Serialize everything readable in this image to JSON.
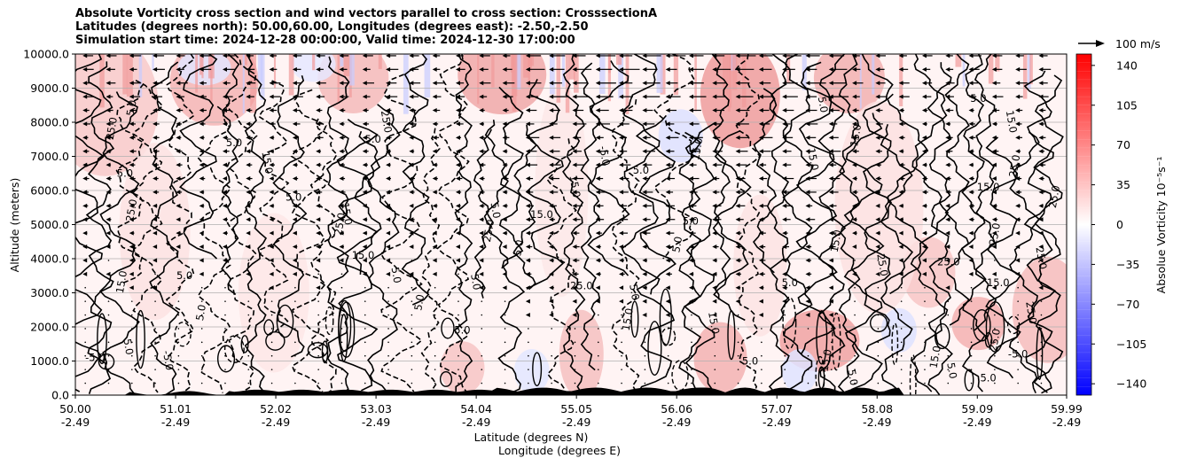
{
  "chart_data": {
    "type": "heatmap",
    "title_lines": [
      "Absolute Vorticity cross section and wind vectors parallel to cross section: CrosssectionA",
      "Latitudes (degrees north): 50.00,60.00, Longitudes (degrees east): -2.50,-2.50",
      "Simulation start time: 2024-12-28 00:00:00, Valid time: 2024-12-30 17:00:00"
    ],
    "ylabel": "Altitude (meters)",
    "xlabel_lines": [
      "Latitude (degrees N)",
      "Longitude (degrees E)"
    ],
    "ylim": [
      0,
      10000
    ],
    "y_ticks": [
      "0.0",
      "1000.0",
      "2000.0",
      "3000.0",
      "4000.0",
      "5000.0",
      "6000.0",
      "7000.0",
      "8000.0",
      "9000.0",
      "10000.0"
    ],
    "y_tick_values": [
      0,
      1000,
      2000,
      3000,
      4000,
      5000,
      6000,
      7000,
      8000,
      9000,
      10000
    ],
    "x_ticks_lat": [
      "50.00",
      "51.01",
      "52.02",
      "53.03",
      "54.04",
      "55.05",
      "56.06",
      "57.07",
      "58.08",
      "59.09",
      "59.99"
    ],
    "x_ticks_lon": [
      "-2.49",
      "-2.49",
      "-2.49",
      "-2.49",
      "-2.49",
      "-2.49",
      "-2.49",
      "-2.49",
      "-2.49",
      "-2.49",
      "-2.49"
    ],
    "x_tick_values": [
      50.0,
      51.01,
      52.02,
      53.03,
      54.04,
      55.05,
      56.06,
      57.07,
      58.08,
      59.09,
      59.99
    ],
    "xlim": [
      50.0,
      59.99
    ],
    "grid": "horizontal",
    "colorbar": {
      "label": "Absolue Vorticity 10⁻⁵s⁻¹",
      "ticks": [
        "140",
        "105",
        "70",
        "35",
        "0",
        "−35",
        "−70",
        "−105",
        "−140"
      ],
      "tick_values": [
        140,
        105,
        70,
        35,
        0,
        -35,
        -70,
        -105,
        -140
      ],
      "range": [
        -150,
        150
      ],
      "colormap": "bwr"
    },
    "quiver_key": {
      "label": "100 m/s"
    },
    "contour_labels": [
      {
        "lat": 51.6,
        "alt": 7300,
        "text": "5.0"
      },
      {
        "lat": 51.9,
        "alt": 6800,
        "text": "15.0"
      },
      {
        "lat": 50.6,
        "alt": 5400,
        "text": "25.0"
      },
      {
        "lat": 52.2,
        "alt": 5700,
        "text": "5.0"
      },
      {
        "lat": 52.7,
        "alt": 5000,
        "text": "25.0"
      },
      {
        "lat": 52.7,
        "alt": 5300,
        "text": "15.0"
      },
      {
        "lat": 52.9,
        "alt": 4000,
        "text": "15.0"
      },
      {
        "lat": 53.2,
        "alt": 3500,
        "text": "5.0"
      },
      {
        "lat": 50.5,
        "alt": 3300,
        "text": "15.0"
      },
      {
        "lat": 51.1,
        "alt": 3400,
        "text": "5.0"
      },
      {
        "lat": 51.3,
        "alt": 2400,
        "text": "5.0"
      },
      {
        "lat": 50.5,
        "alt": 1400,
        "text": "5.0"
      },
      {
        "lat": 50.2,
        "alt": 1000,
        "text": "-5.0"
      },
      {
        "lat": 50.9,
        "alt": 1000,
        "text": "-5.0"
      },
      {
        "lat": 50.6,
        "alt": 8400,
        "text": "5.0"
      },
      {
        "lat": 50.5,
        "alt": 6400,
        "text": "5.0"
      },
      {
        "lat": 50.4,
        "alt": 7800,
        "text": "25.0"
      },
      {
        "lat": 53.1,
        "alt": 8000,
        "text": "25.0"
      },
      {
        "lat": 53.0,
        "alt": 7400,
        "text": "5.0"
      },
      {
        "lat": 54.2,
        "alt": 5400,
        "text": "5.0"
      },
      {
        "lat": 54.2,
        "alt": 4800,
        "text": "25.0"
      },
      {
        "lat": 54.7,
        "alt": 5200,
        "text": "15.0"
      },
      {
        "lat": 54.5,
        "alt": 4300,
        "text": "5.0"
      },
      {
        "lat": 55.0,
        "alt": 6100,
        "text": "15.0"
      },
      {
        "lat": 55.7,
        "alt": 6500,
        "text": "5.0"
      },
      {
        "lat": 55.3,
        "alt": 7000,
        "text": "-5.0"
      },
      {
        "lat": 56.3,
        "alt": 7200,
        "text": "15.0"
      },
      {
        "lat": 56.2,
        "alt": 5000,
        "text": "5.0"
      },
      {
        "lat": 56.1,
        "alt": 4400,
        "text": "5.0"
      },
      {
        "lat": 55.6,
        "alt": 3000,
        "text": "5.0"
      },
      {
        "lat": 55.1,
        "alt": 3100,
        "text": "25.0"
      },
      {
        "lat": 54.0,
        "alt": 3300,
        "text": "5.0"
      },
      {
        "lat": 53.5,
        "alt": 2700,
        "text": "5.0"
      },
      {
        "lat": 53.9,
        "alt": 1800,
        "text": "5.0"
      },
      {
        "lat": 55.6,
        "alt": 2200,
        "text": "15.0"
      },
      {
        "lat": 56.4,
        "alt": 2100,
        "text": "15.0"
      },
      {
        "lat": 57.2,
        "alt": 3200,
        "text": "5.0"
      },
      {
        "lat": 58.1,
        "alt": 3800,
        "text": "25.0"
      },
      {
        "lat": 57.7,
        "alt": 4500,
        "text": "15.0"
      },
      {
        "lat": 58.8,
        "alt": 3800,
        "text": "25.0"
      },
      {
        "lat": 59.3,
        "alt": 4700,
        "text": "25.0"
      },
      {
        "lat": 59.7,
        "alt": 4000,
        "text": "25.0"
      },
      {
        "lat": 59.3,
        "alt": 3200,
        "text": "15.0"
      },
      {
        "lat": 59.6,
        "alt": 2400,
        "text": "25.0"
      },
      {
        "lat": 59.3,
        "alt": 1600,
        "text": "25.0"
      },
      {
        "lat": 59.5,
        "alt": 1100,
        "text": "-5.0"
      },
      {
        "lat": 58.7,
        "alt": 1100,
        "text": "15.0"
      },
      {
        "lat": 58.8,
        "alt": 700,
        "text": "5.0"
      },
      {
        "lat": 59.2,
        "alt": 400,
        "text": "5.0"
      },
      {
        "lat": 59.4,
        "alt": 8000,
        "text": "15.0"
      },
      {
        "lat": 59.5,
        "alt": 6700,
        "text": "25.0"
      },
      {
        "lat": 59.2,
        "alt": 6000,
        "text": "15.0"
      },
      {
        "lat": 57.9,
        "alt": 7600,
        "text": "15.0"
      },
      {
        "lat": 57.5,
        "alt": 8500,
        "text": "5.0"
      },
      {
        "lat": 59.1,
        "alt": 8600,
        "text": "5.0"
      },
      {
        "lat": 57.4,
        "alt": 6900,
        "text": "15.0"
      },
      {
        "lat": 59.9,
        "alt": 5800,
        "text": "25.0"
      },
      {
        "lat": 56.8,
        "alt": 900,
        "text": "5.0"
      },
      {
        "lat": 57.6,
        "alt": 1000,
        "text": "15.0"
      },
      {
        "lat": 57.8,
        "alt": 500,
        "text": "5.0"
      }
    ]
  }
}
